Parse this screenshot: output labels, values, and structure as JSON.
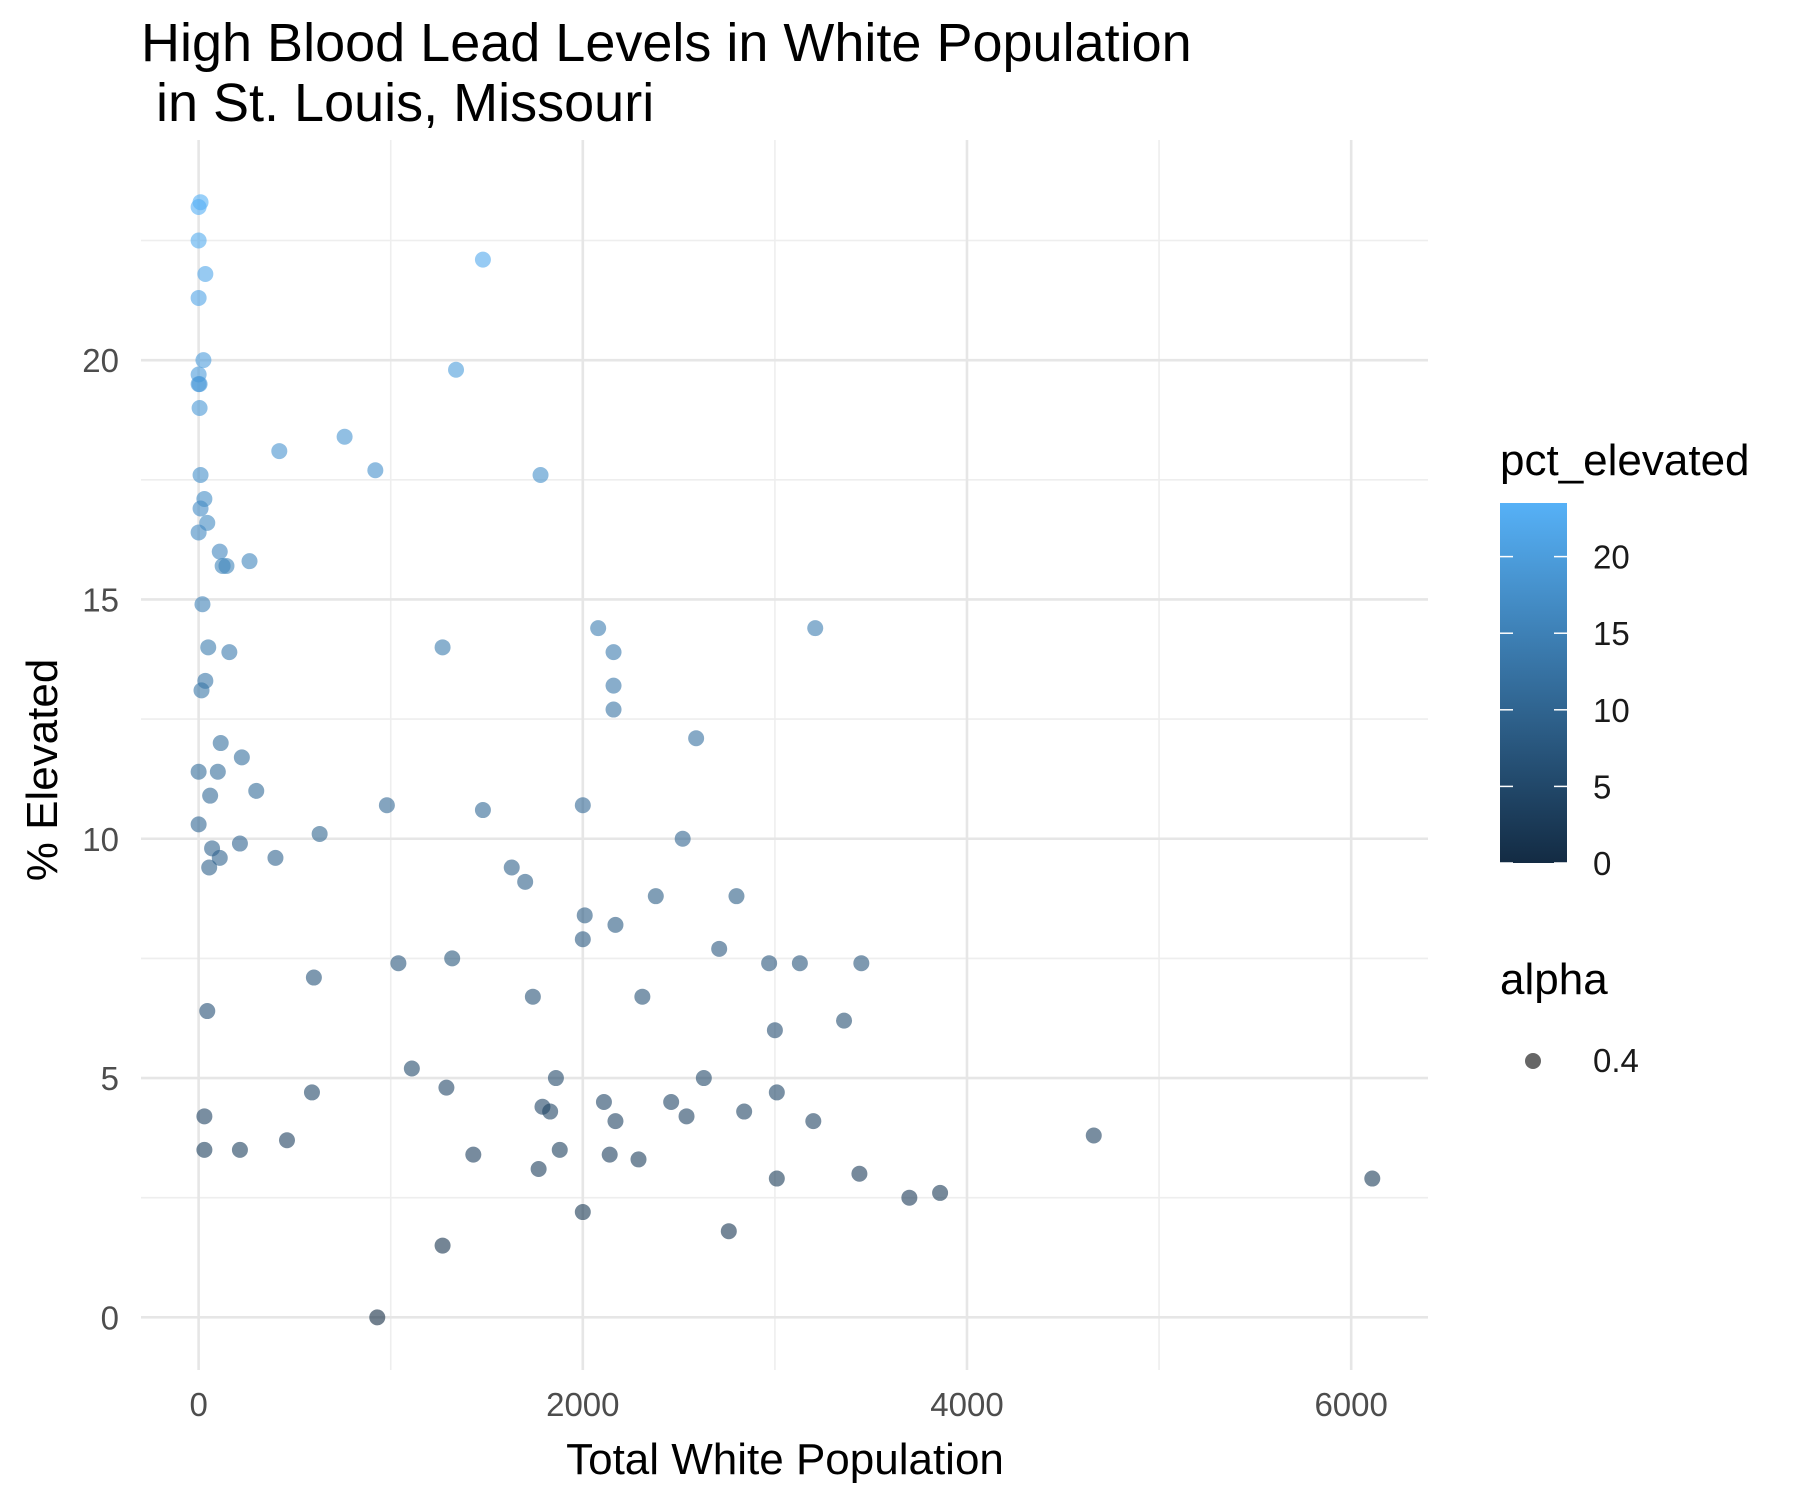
{
  "chart_data": {
    "type": "scatter",
    "title": "High Blood Lead Levels in White Population\n in St. Louis, Missouri",
    "xlabel": "Total White Population",
    "ylabel": "% Elevated",
    "xlim": [
      -300,
      6400
    ],
    "ylim": [
      -1.1,
      24.6
    ],
    "x_ticks": [
      0,
      2000,
      4000,
      6000
    ],
    "x_tick_labels": [
      "0",
      "2000",
      "4000",
      "6000"
    ],
    "y_ticks": [
      0,
      5,
      10,
      15,
      20
    ],
    "y_tick_labels": [
      "0",
      "5",
      "10",
      "15",
      "20"
    ],
    "grid": true,
    "color_by": "pct_elevated",
    "color_scale": {
      "low": "#132B43",
      "high": "#56B1F7",
      "min": 0,
      "max": 23.5
    },
    "point_alpha": 0.6,
    "legend": {
      "position": "right",
      "color_title": "pct_elevated",
      "color_breaks": [
        0,
        5,
        10,
        15,
        20
      ],
      "color_break_labels": [
        "0",
        "5",
        "10",
        "15",
        "20"
      ],
      "alpha_title": "alpha",
      "alpha_label": "0.4",
      "alpha_key_color": "#333333"
    },
    "points": [
      {
        "x": 10,
        "y": 23.3
      },
      {
        "x": 0,
        "y": 23.2
      },
      {
        "x": 0,
        "y": 22.5
      },
      {
        "x": 35,
        "y": 21.8
      },
      {
        "x": 0,
        "y": 21.3
      },
      {
        "x": 1480,
        "y": 22.1
      },
      {
        "x": 25,
        "y": 20.0
      },
      {
        "x": 0,
        "y": 19.7
      },
      {
        "x": 5,
        "y": 19.5
      },
      {
        "x": 0,
        "y": 19.5
      },
      {
        "x": 1340,
        "y": 19.8
      },
      {
        "x": 5,
        "y": 19.0
      },
      {
        "x": 760,
        "y": 18.4
      },
      {
        "x": 420,
        "y": 18.1
      },
      {
        "x": 920,
        "y": 17.7
      },
      {
        "x": 10,
        "y": 17.6
      },
      {
        "x": 1780,
        "y": 17.6
      },
      {
        "x": 30,
        "y": 17.1
      },
      {
        "x": 10,
        "y": 16.9
      },
      {
        "x": 45,
        "y": 16.6
      },
      {
        "x": 0,
        "y": 16.4
      },
      {
        "x": 110,
        "y": 16.0
      },
      {
        "x": 125,
        "y": 15.7
      },
      {
        "x": 145,
        "y": 15.7
      },
      {
        "x": 265,
        "y": 15.8
      },
      {
        "x": 20,
        "y": 14.9
      },
      {
        "x": 2080,
        "y": 14.4
      },
      {
        "x": 3210,
        "y": 14.4
      },
      {
        "x": 50,
        "y": 14.0
      },
      {
        "x": 1270,
        "y": 14.0
      },
      {
        "x": 160,
        "y": 13.9
      },
      {
        "x": 2160,
        "y": 13.9
      },
      {
        "x": 35,
        "y": 13.3
      },
      {
        "x": 15,
        "y": 13.1
      },
      {
        "x": 2160,
        "y": 13.2
      },
      {
        "x": 2160,
        "y": 12.7
      },
      {
        "x": 2590,
        "y": 12.1
      },
      {
        "x": 115,
        "y": 12.0
      },
      {
        "x": 225,
        "y": 11.7
      },
      {
        "x": 0,
        "y": 11.4
      },
      {
        "x": 100,
        "y": 11.4
      },
      {
        "x": 300,
        "y": 11.0
      },
      {
        "x": 60,
        "y": 10.9
      },
      {
        "x": 980,
        "y": 10.7
      },
      {
        "x": 2000,
        "y": 10.7
      },
      {
        "x": 1480,
        "y": 10.6
      },
      {
        "x": 0,
        "y": 10.3
      },
      {
        "x": 630,
        "y": 10.1
      },
      {
        "x": 2520,
        "y": 10.0
      },
      {
        "x": 70,
        "y": 9.8
      },
      {
        "x": 215,
        "y": 9.9
      },
      {
        "x": 110,
        "y": 9.6
      },
      {
        "x": 400,
        "y": 9.6
      },
      {
        "x": 55,
        "y": 9.4
      },
      {
        "x": 1630,
        "y": 9.4
      },
      {
        "x": 1700,
        "y": 9.1
      },
      {
        "x": 2380,
        "y": 8.8
      },
      {
        "x": 2800,
        "y": 8.8
      },
      {
        "x": 2010,
        "y": 8.4
      },
      {
        "x": 2170,
        "y": 8.2
      },
      {
        "x": 2000,
        "y": 7.9
      },
      {
        "x": 2710,
        "y": 7.7
      },
      {
        "x": 1040,
        "y": 7.4
      },
      {
        "x": 1320,
        "y": 7.5
      },
      {
        "x": 2970,
        "y": 7.4
      },
      {
        "x": 3130,
        "y": 7.4
      },
      {
        "x": 3450,
        "y": 7.4
      },
      {
        "x": 600,
        "y": 7.1
      },
      {
        "x": 1740,
        "y": 6.7
      },
      {
        "x": 2310,
        "y": 6.7
      },
      {
        "x": 45,
        "y": 6.4
      },
      {
        "x": 3360,
        "y": 6.2
      },
      {
        "x": 3000,
        "y": 6.0
      },
      {
        "x": 1110,
        "y": 5.2
      },
      {
        "x": 1860,
        "y": 5.0
      },
      {
        "x": 2630,
        "y": 5.0
      },
      {
        "x": 1290,
        "y": 4.8
      },
      {
        "x": 3010,
        "y": 4.7
      },
      {
        "x": 590,
        "y": 4.7
      },
      {
        "x": 2110,
        "y": 4.5
      },
      {
        "x": 2460,
        "y": 4.5
      },
      {
        "x": 1790,
        "y": 4.4
      },
      {
        "x": 1830,
        "y": 4.3
      },
      {
        "x": 2840,
        "y": 4.3
      },
      {
        "x": 30,
        "y": 4.2
      },
      {
        "x": 2540,
        "y": 4.2
      },
      {
        "x": 2170,
        "y": 4.1
      },
      {
        "x": 3200,
        "y": 4.1
      },
      {
        "x": 4660,
        "y": 3.8
      },
      {
        "x": 460,
        "y": 3.7
      },
      {
        "x": 1880,
        "y": 3.5
      },
      {
        "x": 215,
        "y": 3.5
      },
      {
        "x": 30,
        "y": 3.5
      },
      {
        "x": 1430,
        "y": 3.4
      },
      {
        "x": 2140,
        "y": 3.4
      },
      {
        "x": 2290,
        "y": 3.3
      },
      {
        "x": 1770,
        "y": 3.1
      },
      {
        "x": 3440,
        "y": 3.0
      },
      {
        "x": 3010,
        "y": 2.9
      },
      {
        "x": 6110,
        "y": 2.9
      },
      {
        "x": 3860,
        "y": 2.6
      },
      {
        "x": 3700,
        "y": 2.5
      },
      {
        "x": 2000,
        "y": 2.2
      },
      {
        "x": 2760,
        "y": 1.8
      },
      {
        "x": 1270,
        "y": 1.5
      },
      {
        "x": 930,
        "y": 0.0
      }
    ]
  }
}
